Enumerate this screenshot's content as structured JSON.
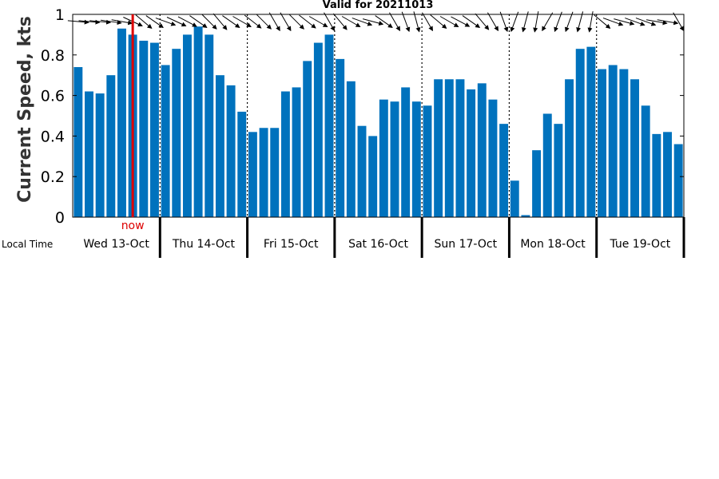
{
  "chart_data": {
    "type": "bar",
    "title": "Valid for 20211013",
    "ylabel": "Current Speed, kts",
    "xlabel": "Local Time",
    "ylim": [
      0,
      1
    ],
    "yticks": [
      "0",
      "0.2",
      "0.4",
      "0.6",
      "0.8",
      "1"
    ],
    "bar_color": "#0072BD",
    "now_color": "#DD0000",
    "now_label": "now",
    "now_after_bar": 6,
    "days": [
      "Wed 13-Oct",
      "Thu 14-Oct",
      "Fri 15-Oct",
      "Sat 16-Oct",
      "Sun 17-Oct",
      "Mon 18-Oct",
      "Tue 19-Oct"
    ],
    "values": [
      0.74,
      0.62,
      0.61,
      0.7,
      0.93,
      0.9,
      0.87,
      0.86,
      0.75,
      0.83,
      0.9,
      0.94,
      0.9,
      0.7,
      0.65,
      0.52,
      0.42,
      0.44,
      0.44,
      0.62,
      0.64,
      0.77,
      0.86,
      0.9,
      0.78,
      0.67,
      0.45,
      0.4,
      0.58,
      0.57,
      0.64,
      0.57,
      0.55,
      0.68,
      0.68,
      0.68,
      0.63,
      0.66,
      0.58,
      0.46,
      0.18,
      0.01,
      0.33,
      0.51,
      0.46,
      0.68,
      0.83,
      0.84,
      0.73,
      0.75,
      0.73,
      0.68,
      0.55,
      0.41,
      0.42,
      0.36
    ],
    "direction_deg": [
      95,
      95,
      95,
      98,
      100,
      115,
      130,
      125,
      110,
      115,
      118,
      125,
      135,
      140,
      125,
      120,
      128,
      135,
      150,
      150,
      135,
      128,
      120,
      150,
      140,
      120,
      110,
      105,
      125,
      150,
      160,
      165,
      150,
      130,
      120,
      118,
      125,
      140,
      150,
      160,
      200,
      195,
      190,
      210,
      200,
      200,
      195,
      190,
      130,
      110,
      105,
      110,
      110,
      100,
      100,
      150
    ]
  }
}
